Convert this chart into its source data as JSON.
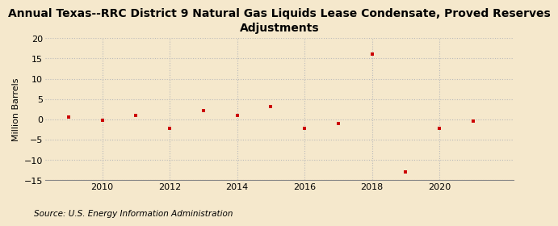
{
  "title": "Annual Texas--RRC District 9 Natural Gas Liquids Lease Condensate, Proved Reserves\nAdjustments",
  "ylabel": "Million Barrels",
  "source": "Source: U.S. Energy Information Administration",
  "years": [
    2009,
    2010,
    2011,
    2012,
    2013,
    2014,
    2015,
    2016,
    2017,
    2018,
    2019,
    2020,
    2021
  ],
  "values": [
    0.5,
    -0.2,
    1.0,
    -2.3,
    2.1,
    1.0,
    3.1,
    -2.3,
    -1.0,
    16.0,
    -13.0,
    -2.3,
    -0.5
  ],
  "marker_color": "#cc0000",
  "bg_color": "#f5e8cc",
  "plot_bg_color": "#f5e8cc",
  "grid_color": "#bbbbbb",
  "ylim": [
    -15,
    20
  ],
  "yticks": [
    -15,
    -10,
    -5,
    0,
    5,
    10,
    15,
    20
  ],
  "xlim": [
    2008.3,
    2022.2
  ],
  "xticks": [
    2010,
    2012,
    2014,
    2016,
    2018,
    2020
  ],
  "title_fontsize": 10,
  "axis_fontsize": 8,
  "source_fontsize": 7.5
}
